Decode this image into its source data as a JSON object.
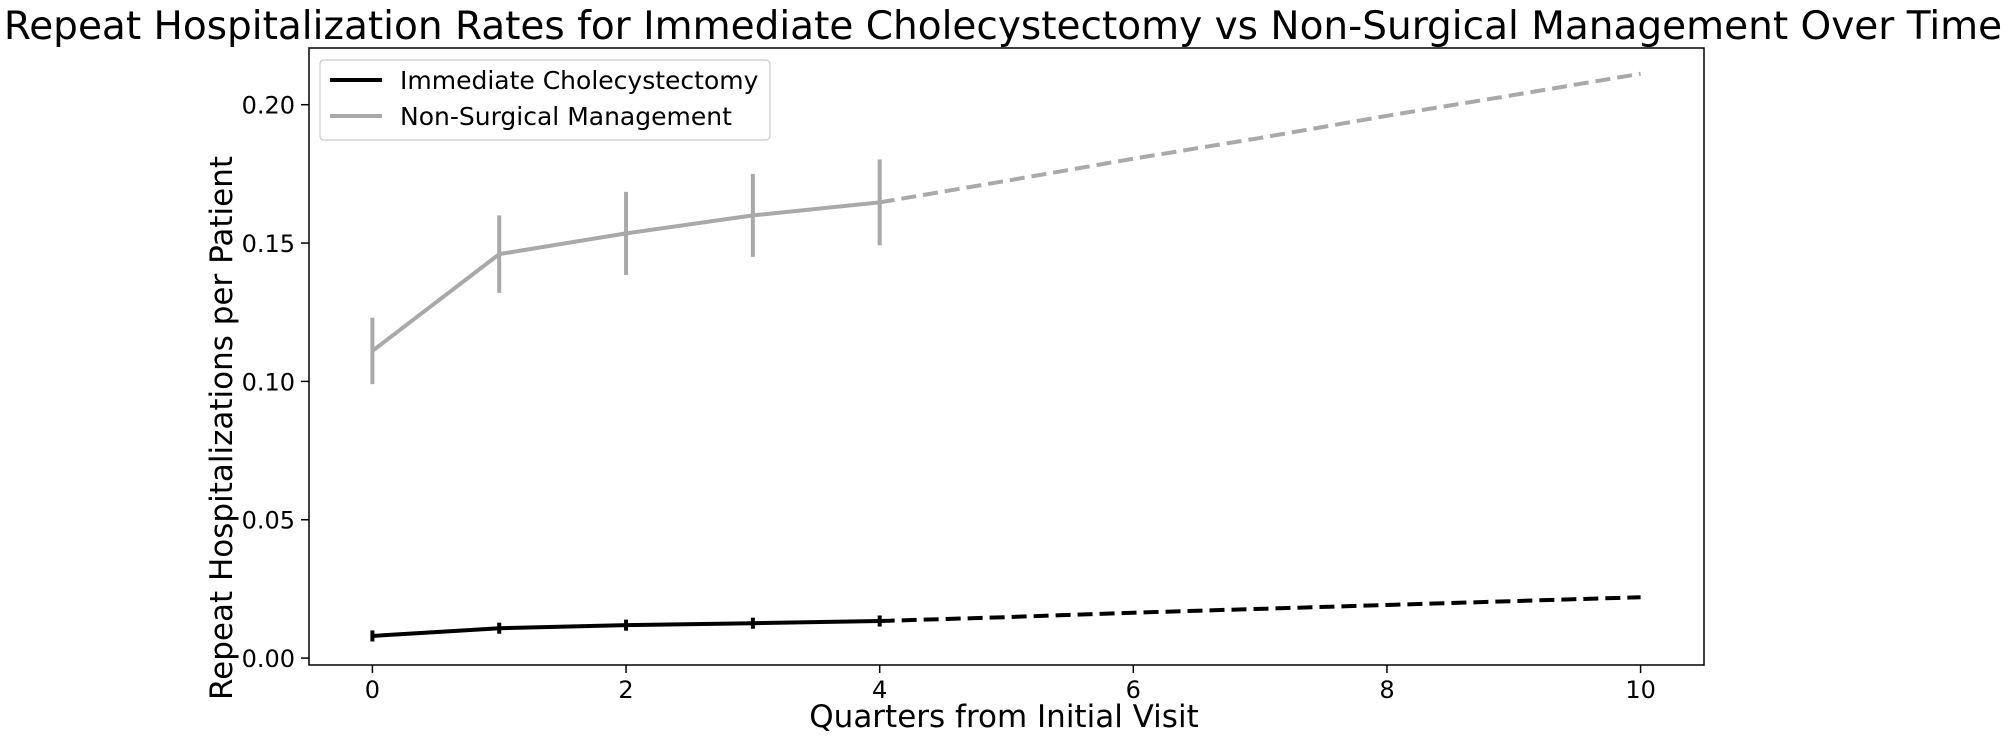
{
  "chart_data": {
    "type": "line",
    "title": "Repeat Hospitalization Rates for Immediate Cholecystectomy vs Non-Surgical Management Over Time",
    "xlabel": "Quarters from Initial Visit",
    "ylabel": "Repeat Hospitalizations per Patient",
    "xlim": [
      -0.5,
      10.5
    ],
    "ylim": [
      -0.0025,
      0.2205
    ],
    "x_ticks": [
      0,
      2,
      4,
      6,
      8,
      10
    ],
    "y_ticks": [
      0.0,
      0.05,
      0.1,
      0.15,
      0.2
    ],
    "x_tick_labels": [
      "0",
      "2",
      "4",
      "6",
      "8",
      "10"
    ],
    "y_tick_labels": [
      "0.00",
      "0.05",
      "0.10",
      "0.15",
      "0.20"
    ],
    "grid": false,
    "legend_position": "upper-left",
    "series": [
      {
        "name": "Immediate Cholecystectomy",
        "color": "#000000",
        "observed": {
          "x": [
            0,
            1,
            2,
            3,
            4
          ],
          "y": [
            0.008,
            0.0108,
            0.0119,
            0.0126,
            0.0134
          ],
          "error": [
            0.002,
            0.002,
            0.002,
            0.002,
            0.002
          ]
        },
        "projected": {
          "x": [
            4,
            5,
            6,
            7,
            8,
            9,
            10
          ],
          "y": [
            0.0134,
            0.0148,
            0.0164,
            0.0178,
            0.0192,
            0.0206,
            0.022
          ]
        }
      },
      {
        "name": "Non-Surgical Management",
        "color": "#a9a9a9",
        "observed": {
          "x": [
            0,
            1,
            2,
            3,
            4
          ],
          "y": [
            0.111,
            0.146,
            0.1535,
            0.16,
            0.1647
          ],
          "error": [
            0.012,
            0.014,
            0.015,
            0.015,
            0.0155
          ]
        },
        "projected": {
          "x": [
            4,
            5,
            6,
            7,
            8,
            9,
            10
          ],
          "y": [
            0.1647,
            0.1725,
            0.1805,
            0.188,
            0.196,
            0.2035,
            0.2112
          ]
        }
      }
    ]
  }
}
